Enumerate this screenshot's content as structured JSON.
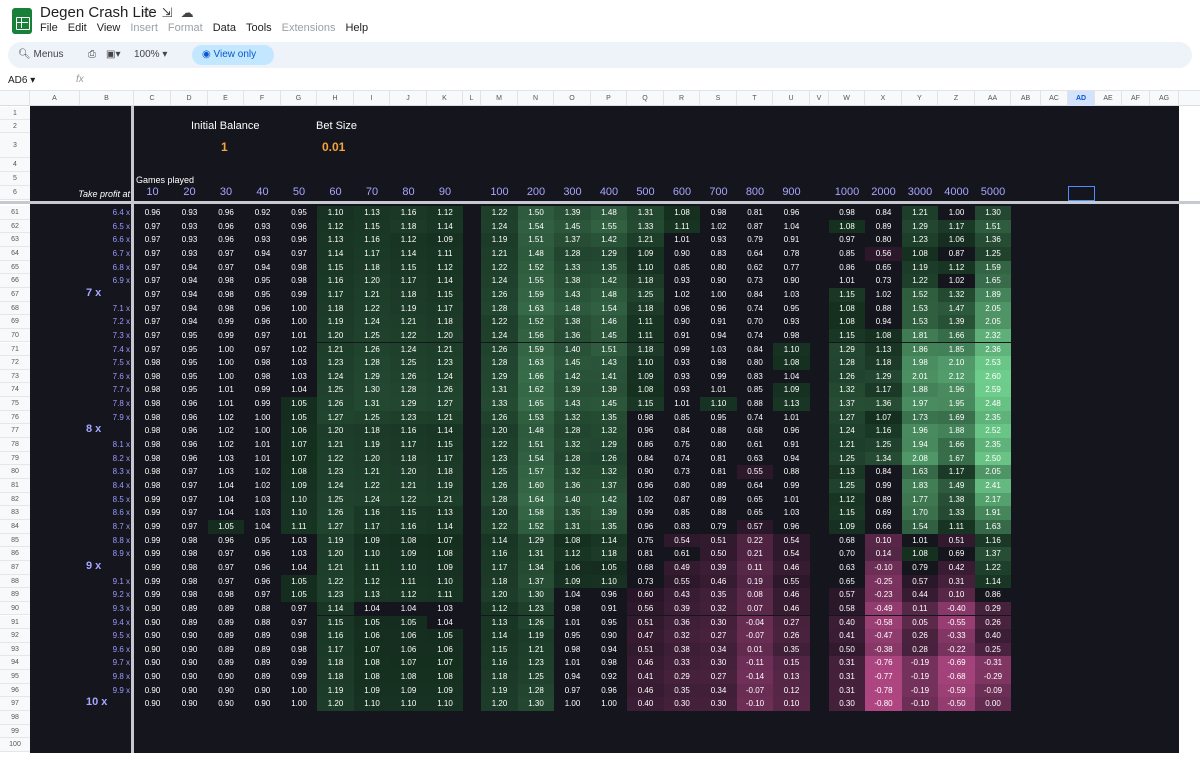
{
  "app": {
    "title": "Degen Crash Lite",
    "menus": [
      "File",
      "Edit",
      "View",
      "Insert",
      "Format",
      "Data",
      "Tools",
      "Extensions",
      "Help"
    ],
    "disabled_menus": [
      "Insert",
      "Format",
      "Extensions"
    ]
  },
  "toolbar": {
    "menus_label": "Menus",
    "zoom": "100%",
    "view_only": "View only"
  },
  "formula_bar": {
    "cell_ref": "AD6",
    "fx": "fx"
  },
  "columns": [
    "A",
    "B",
    "C",
    "D",
    "E",
    "F",
    "G",
    "H",
    "I",
    "J",
    "K",
    "L",
    "M",
    "N",
    "O",
    "P",
    "Q",
    "R",
    "S",
    "T",
    "U",
    "V",
    "W",
    "X",
    "Y",
    "Z",
    "AA",
    "AB",
    "AC",
    "AD",
    "AE",
    "AF",
    "AG"
  ],
  "selected_column": "AD",
  "row_numbers_top": [
    "1",
    "2",
    "3",
    "4",
    "5",
    "6"
  ],
  "row_numbers_bottom": [
    "98",
    "99",
    "100"
  ],
  "sheet": {
    "initial_balance_label": "Initial Balance",
    "initial_balance": "1",
    "bet_size_label": "Bet Size",
    "bet_size": "0.01",
    "games_played_label": "Games played",
    "take_profit_label": "Take profit at",
    "games": [
      "10",
      "20",
      "30",
      "40",
      "50",
      "60",
      "70",
      "80",
      "90",
      "100",
      "200",
      "300",
      "400",
      "500",
      "600",
      "700",
      "800",
      "900",
      "1000",
      "2000",
      "3000",
      "4000",
      "5000"
    ]
  },
  "rows": [
    {
      "r": "61",
      "tp": "6.4 x",
      "v": [
        "0.96",
        "0.93",
        "0.96",
        "0.92",
        "0.95",
        "1.10",
        "1.13",
        "1.16",
        "1.12",
        "1.22",
        "1.50",
        "1.39",
        "1.48",
        "1.31",
        "1.08",
        "0.98",
        "0.81",
        "0.96",
        "0.98",
        "0.84",
        "1.21",
        "1.00",
        "1.30"
      ]
    },
    {
      "r": "62",
      "tp": "6.5 x",
      "v": [
        "0.97",
        "0.93",
        "0.96",
        "0.93",
        "0.96",
        "1.12",
        "1.15",
        "1.18",
        "1.14",
        "1.24",
        "1.54",
        "1.45",
        "1.55",
        "1.33",
        "1.11",
        "1.02",
        "0.87",
        "1.04",
        "1.08",
        "0.89",
        "1.29",
        "1.17",
        "1.51"
      ]
    },
    {
      "r": "63",
      "tp": "6.6 x",
      "v": [
        "0.97",
        "0.93",
        "0.96",
        "0.93",
        "0.96",
        "1.13",
        "1.16",
        "1.12",
        "1.09",
        "1.19",
        "1.51",
        "1.37",
        "1.42",
        "1.21",
        "1.01",
        "0.93",
        "0.79",
        "0.91",
        "0.97",
        "0.80",
        "1.23",
        "1.06",
        "1.36"
      ]
    },
    {
      "r": "64",
      "tp": "6.7 x",
      "v": [
        "0.97",
        "0.93",
        "0.97",
        "0.94",
        "0.97",
        "1.14",
        "1.17",
        "1.14",
        "1.11",
        "1.21",
        "1.48",
        "1.28",
        "1.29",
        "1.09",
        "0.90",
        "0.83",
        "0.64",
        "0.78",
        "0.85",
        "0.56",
        "1.08",
        "0.87",
        "1.25"
      ]
    },
    {
      "r": "65",
      "tp": "6.8 x",
      "v": [
        "0.97",
        "0.94",
        "0.97",
        "0.94",
        "0.98",
        "1.15",
        "1.18",
        "1.15",
        "1.12",
        "1.22",
        "1.52",
        "1.33",
        "1.35",
        "1.10",
        "0.85",
        "0.80",
        "0.62",
        "0.77",
        "0.86",
        "0.65",
        "1.19",
        "1.12",
        "1.59"
      ]
    },
    {
      "r": "66",
      "tp": "6.9 x",
      "v": [
        "0.97",
        "0.94",
        "0.98",
        "0.95",
        "0.98",
        "1.16",
        "1.20",
        "1.17",
        "1.14",
        "1.24",
        "1.55",
        "1.38",
        "1.42",
        "1.18",
        "0.93",
        "0.90",
        "0.73",
        "0.90",
        "1.01",
        "0.73",
        "1.22",
        "1.02",
        "1.65"
      ]
    },
    {
      "r": "67",
      "tp": "7 x",
      "big": true,
      "v": [
        "0.97",
        "0.94",
        "0.98",
        "0.95",
        "0.99",
        "1.17",
        "1.21",
        "1.18",
        "1.15",
        "1.26",
        "1.59",
        "1.43",
        "1.48",
        "1.25",
        "1.02",
        "1.00",
        "0.84",
        "1.03",
        "1.15",
        "1.02",
        "1.52",
        "1.32",
        "1.89"
      ]
    },
    {
      "r": "68",
      "tp": "7.1 x",
      "v": [
        "0.97",
        "0.94",
        "0.98",
        "0.96",
        "1.00",
        "1.18",
        "1.22",
        "1.19",
        "1.17",
        "1.28",
        "1.63",
        "1.48",
        "1.54",
        "1.18",
        "0.96",
        "0.96",
        "0.74",
        "0.95",
        "1.08",
        "0.88",
        "1.53",
        "1.47",
        "2.05"
      ]
    },
    {
      "r": "69",
      "tp": "7.2 x",
      "v": [
        "0.97",
        "0.94",
        "0.99",
        "0.96",
        "1.00",
        "1.19",
        "1.24",
        "1.21",
        "1.18",
        "1.22",
        "1.52",
        "1.38",
        "1.46",
        "1.11",
        "0.90",
        "0.91",
        "0.70",
        "0.93",
        "1.08",
        "0.94",
        "1.53",
        "1.39",
        "2.05"
      ]
    },
    {
      "r": "70",
      "tp": "7.3 x",
      "v": [
        "0.97",
        "0.95",
        "0.99",
        "0.97",
        "1.01",
        "1.20",
        "1.25",
        "1.22",
        "1.20",
        "1.24",
        "1.56",
        "1.36",
        "1.45",
        "1.11",
        "0.91",
        "0.94",
        "0.74",
        "0.98",
        "1.15",
        "1.08",
        "1.81",
        "1.66",
        "2.32"
      ]
    },
    {
      "r": "71",
      "tp": "7.4 x",
      "v": [
        "0.97",
        "0.95",
        "1.00",
        "0.97",
        "1.02",
        "1.21",
        "1.26",
        "1.24",
        "1.21",
        "1.26",
        "1.59",
        "1.40",
        "1.51",
        "1.18",
        "0.99",
        "1.03",
        "0.84",
        "1.10",
        "1.29",
        "1.13",
        "1.86",
        "1.85",
        "2.36"
      ]
    },
    {
      "r": "72",
      "tp": "7.5 x",
      "v": [
        "0.98",
        "0.95",
        "1.00",
        "0.98",
        "1.03",
        "1.23",
        "1.28",
        "1.25",
        "1.23",
        "1.28",
        "1.63",
        "1.45",
        "1.43",
        "1.10",
        "0.93",
        "0.98",
        "0.80",
        "1.08",
        "1.28",
        "1.18",
        "1.98",
        "2.10",
        "2.53"
      ]
    },
    {
      "r": "73",
      "tp": "7.6 x",
      "v": [
        "0.98",
        "0.95",
        "1.00",
        "0.98",
        "1.03",
        "1.24",
        "1.29",
        "1.26",
        "1.24",
        "1.29",
        "1.66",
        "1.42",
        "1.41",
        "1.09",
        "0.93",
        "0.99",
        "0.83",
        "1.04",
        "1.26",
        "1.29",
        "2.01",
        "2.12",
        "2.60"
      ]
    },
    {
      "r": "74",
      "tp": "7.7 x",
      "v": [
        "0.98",
        "0.95",
        "1.01",
        "0.99",
        "1.04",
        "1.25",
        "1.30",
        "1.28",
        "1.26",
        "1.31",
        "1.62",
        "1.39",
        "1.39",
        "1.08",
        "0.93",
        "1.01",
        "0.85",
        "1.09",
        "1.32",
        "1.17",
        "1.88",
        "1.96",
        "2.59"
      ]
    },
    {
      "r": "75",
      "tp": "7.8 x",
      "v": [
        "0.98",
        "0.96",
        "1.01",
        "0.99",
        "1.05",
        "1.26",
        "1.31",
        "1.29",
        "1.27",
        "1.33",
        "1.65",
        "1.43",
        "1.45",
        "1.15",
        "1.01",
        "1.10",
        "0.88",
        "1.13",
        "1.37",
        "1.36",
        "1.97",
        "1.95",
        "2.48"
      ]
    },
    {
      "r": "76",
      "tp": "7.9 x",
      "v": [
        "0.98",
        "0.96",
        "1.02",
        "1.00",
        "1.05",
        "1.27",
        "1.25",
        "1.23",
        "1.21",
        "1.26",
        "1.53",
        "1.32",
        "1.35",
        "0.98",
        "0.85",
        "0.95",
        "0.74",
        "1.01",
        "1.27",
        "1.07",
        "1.73",
        "1.69",
        "2.35"
      ]
    },
    {
      "r": "77",
      "tp": "8 x",
      "big": true,
      "v": [
        "0.98",
        "0.96",
        "1.02",
        "1.00",
        "1.06",
        "1.20",
        "1.18",
        "1.16",
        "1.14",
        "1.20",
        "1.48",
        "1.28",
        "1.32",
        "0.96",
        "0.84",
        "0.88",
        "0.68",
        "0.96",
        "1.24",
        "1.16",
        "1.96",
        "1.88",
        "2.52"
      ]
    },
    {
      "r": "78",
      "tp": "8.1 x",
      "v": [
        "0.98",
        "0.96",
        "1.02",
        "1.01",
        "1.07",
        "1.21",
        "1.19",
        "1.17",
        "1.15",
        "1.22",
        "1.51",
        "1.32",
        "1.29",
        "0.86",
        "0.75",
        "0.80",
        "0.61",
        "0.91",
        "1.21",
        "1.25",
        "1.94",
        "1.66",
        "2.35"
      ]
    },
    {
      "r": "79",
      "tp": "8.2 x",
      "v": [
        "0.98",
        "0.96",
        "1.03",
        "1.01",
        "1.07",
        "1.22",
        "1.20",
        "1.18",
        "1.17",
        "1.23",
        "1.54",
        "1.28",
        "1.26",
        "0.84",
        "0.74",
        "0.81",
        "0.63",
        "0.94",
        "1.25",
        "1.34",
        "2.08",
        "1.67",
        "2.50"
      ]
    },
    {
      "r": "80",
      "tp": "8.3 x",
      "v": [
        "0.98",
        "0.97",
        "1.03",
        "1.02",
        "1.08",
        "1.23",
        "1.21",
        "1.20",
        "1.18",
        "1.25",
        "1.57",
        "1.32",
        "1.32",
        "0.90",
        "0.73",
        "0.81",
        "0.55",
        "0.88",
        "1.13",
        "0.84",
        "1.63",
        "1.17",
        "2.05"
      ]
    },
    {
      "r": "81",
      "tp": "8.4 x",
      "v": [
        "0.98",
        "0.97",
        "1.04",
        "1.02",
        "1.09",
        "1.24",
        "1.22",
        "1.21",
        "1.19",
        "1.26",
        "1.60",
        "1.36",
        "1.37",
        "0.96",
        "0.80",
        "0.89",
        "0.64",
        "0.99",
        "1.25",
        "0.99",
        "1.83",
        "1.49",
        "2.41"
      ]
    },
    {
      "r": "82",
      "tp": "8.5 x",
      "v": [
        "0.99",
        "0.97",
        "1.04",
        "1.03",
        "1.10",
        "1.25",
        "1.24",
        "1.22",
        "1.21",
        "1.28",
        "1.64",
        "1.40",
        "1.42",
        "1.02",
        "0.87",
        "0.89",
        "0.65",
        "1.01",
        "1.12",
        "0.89",
        "1.77",
        "1.38",
        "2.17"
      ]
    },
    {
      "r": "83",
      "tp": "8.6 x",
      "v": [
        "0.99",
        "0.97",
        "1.04",
        "1.03",
        "1.10",
        "1.26",
        "1.16",
        "1.15",
        "1.13",
        "1.20",
        "1.58",
        "1.35",
        "1.39",
        "0.99",
        "0.85",
        "0.88",
        "0.65",
        "1.03",
        "1.15",
        "0.69",
        "1.70",
        "1.33",
        "1.91"
      ]
    },
    {
      "r": "84",
      "tp": "8.7 x",
      "v": [
        "0.99",
        "0.97",
        "1.05",
        "1.04",
        "1.11",
        "1.27",
        "1.17",
        "1.16",
        "1.14",
        "1.22",
        "1.52",
        "1.31",
        "1.35",
        "0.96",
        "0.83",
        "0.79",
        "0.57",
        "0.96",
        "1.09",
        "0.66",
        "1.54",
        "1.11",
        "1.63"
      ]
    },
    {
      "r": "85",
      "tp": "8.8 x",
      "v": [
        "0.99",
        "0.98",
        "0.96",
        "0.95",
        "1.03",
        "1.19",
        "1.09",
        "1.08",
        "1.07",
        "1.14",
        "1.29",
        "1.08",
        "1.14",
        "0.75",
        "0.54",
        "0.51",
        "0.22",
        "0.54",
        "0.68",
        "0.10",
        "1.01",
        "0.51",
        "1.16"
      ]
    },
    {
      "r": "86",
      "tp": "8.9 x",
      "v": [
        "0.99",
        "0.98",
        "0.97",
        "0.96",
        "1.03",
        "1.20",
        "1.10",
        "1.09",
        "1.08",
        "1.16",
        "1.31",
        "1.12",
        "1.18",
        "0.81",
        "0.61",
        "0.50",
        "0.21",
        "0.54",
        "0.70",
        "0.14",
        "1.08",
        "0.69",
        "1.37"
      ]
    },
    {
      "r": "87",
      "tp": "9 x",
      "big": true,
      "v": [
        "0.99",
        "0.98",
        "0.97",
        "0.96",
        "1.04",
        "1.21",
        "1.11",
        "1.10",
        "1.09",
        "1.17",
        "1.34",
        "1.06",
        "1.05",
        "0.68",
        "0.49",
        "0.39",
        "0.11",
        "0.46",
        "0.63",
        "-0.10",
        "0.79",
        "0.42",
        "1.22"
      ]
    },
    {
      "r": "88",
      "tp": "9.1 x",
      "v": [
        "0.99",
        "0.98",
        "0.97",
        "0.96",
        "1.05",
        "1.22",
        "1.12",
        "1.11",
        "1.10",
        "1.18",
        "1.37",
        "1.09",
        "1.10",
        "0.73",
        "0.55",
        "0.46",
        "0.19",
        "0.55",
        "0.65",
        "-0.25",
        "0.57",
        "0.31",
        "1.14"
      ]
    },
    {
      "r": "89",
      "tp": "9.2 x",
      "v": [
        "0.99",
        "0.98",
        "0.98",
        "0.97",
        "1.05",
        "1.23",
        "1.13",
        "1.12",
        "1.11",
        "1.20",
        "1.30",
        "1.04",
        "0.96",
        "0.60",
        "0.43",
        "0.35",
        "0.08",
        "0.46",
        "0.57",
        "-0.23",
        "0.44",
        "0.10",
        "0.86"
      ]
    },
    {
      "r": "90",
      "tp": "9.3 x",
      "v": [
        "0.90",
        "0.89",
        "0.89",
        "0.88",
        "0.97",
        "1.14",
        "1.04",
        "1.04",
        "1.03",
        "1.12",
        "1.23",
        "0.98",
        "0.91",
        "0.56",
        "0.39",
        "0.32",
        "0.07",
        "0.46",
        "0.58",
        "-0.49",
        "0.11",
        "-0.40",
        "0.29"
      ]
    },
    {
      "r": "91",
      "tp": "9.4 x",
      "v": [
        "0.90",
        "0.89",
        "0.89",
        "0.88",
        "0.97",
        "1.15",
        "1.05",
        "1.05",
        "1.04",
        "1.13",
        "1.26",
        "1.01",
        "0.95",
        "0.51",
        "0.36",
        "0.30",
        "-0.04",
        "0.27",
        "0.40",
        "-0.58",
        "0.05",
        "-0.55",
        "0.26"
      ]
    },
    {
      "r": "92",
      "tp": "9.5 x",
      "v": [
        "0.90",
        "0.90",
        "0.89",
        "0.89",
        "0.98",
        "1.16",
        "1.06",
        "1.06",
        "1.05",
        "1.14",
        "1.19",
        "0.95",
        "0.90",
        "0.47",
        "0.32",
        "0.27",
        "-0.07",
        "0.26",
        "0.41",
        "-0.47",
        "0.26",
        "-0.33",
        "0.40"
      ]
    },
    {
      "r": "93",
      "tp": "9.6 x",
      "v": [
        "0.90",
        "0.90",
        "0.89",
        "0.89",
        "0.98",
        "1.17",
        "1.07",
        "1.06",
        "1.06",
        "1.15",
        "1.21",
        "0.98",
        "0.94",
        "0.51",
        "0.38",
        "0.34",
        "0.01",
        "0.35",
        "0.50",
        "-0.38",
        "0.28",
        "-0.22",
        "0.25"
      ]
    },
    {
      "r": "94",
      "tp": "9.7 x",
      "v": [
        "0.90",
        "0.90",
        "0.89",
        "0.89",
        "0.99",
        "1.18",
        "1.08",
        "1.07",
        "1.07",
        "1.16",
        "1.23",
        "1.01",
        "0.98",
        "0.46",
        "0.33",
        "0.30",
        "-0.11",
        "0.15",
        "0.31",
        "-0.76",
        "-0.19",
        "-0.69",
        "-0.31"
      ]
    },
    {
      "r": "95",
      "tp": "9.8 x",
      "v": [
        "0.90",
        "0.90",
        "0.90",
        "0.89",
        "0.99",
        "1.18",
        "1.08",
        "1.08",
        "1.08",
        "1.18",
        "1.25",
        "0.94",
        "0.92",
        "0.41",
        "0.29",
        "0.27",
        "-0.14",
        "0.13",
        "0.31",
        "-0.77",
        "-0.19",
        "-0.68",
        "-0.29"
      ]
    },
    {
      "r": "96",
      "tp": "9.9 x",
      "v": [
        "0.90",
        "0.90",
        "0.90",
        "0.90",
        "1.00",
        "1.19",
        "1.09",
        "1.09",
        "1.09",
        "1.19",
        "1.28",
        "0.97",
        "0.96",
        "0.46",
        "0.35",
        "0.34",
        "-0.07",
        "0.12",
        "0.31",
        "-0.78",
        "-0.19",
        "-0.59",
        "-0.09"
      ]
    },
    {
      "r": "97",
      "tp": "10 x",
      "big": true,
      "v": [
        "0.90",
        "0.90",
        "0.90",
        "0.90",
        "1.00",
        "1.20",
        "1.10",
        "1.10",
        "1.10",
        "1.20",
        "1.30",
        "1.00",
        "1.00",
        "0.40",
        "0.30",
        "0.30",
        "-0.10",
        "0.10",
        "0.30",
        "-0.80",
        "-0.10",
        "-0.50",
        "0.00"
      ]
    }
  ]
}
